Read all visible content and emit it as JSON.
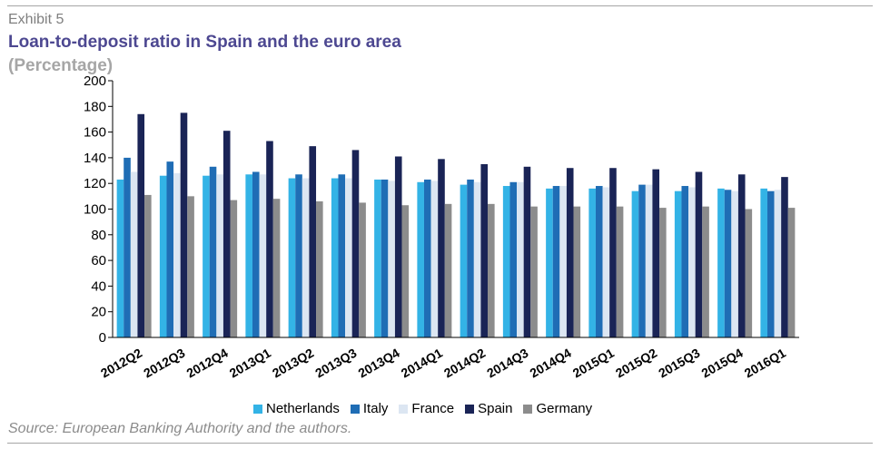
{
  "header": {
    "exhibit": "Exhibit 5",
    "title": "Loan-to-deposit ratio in Spain and the euro area",
    "subtitle": "(Percentage)"
  },
  "footer": {
    "source": "Source: European Banking Authority and the authors."
  },
  "chart_data": {
    "type": "bar",
    "title": "Loan-to-deposit ratio in Spain and the euro area",
    "subtitle": "(Percentage)",
    "xlabel": "",
    "ylabel": "",
    "ylim": [
      0,
      200
    ],
    "yticks": [
      0,
      20,
      40,
      60,
      80,
      100,
      120,
      140,
      160,
      180,
      200
    ],
    "grid": false,
    "legend_position": "bottom",
    "categories": [
      "2012Q2",
      "2012Q3",
      "2012Q4",
      "2013Q1",
      "2013Q2",
      "2013Q3",
      "2013Q4",
      "2014Q1",
      "2014Q2",
      "2014Q3",
      "2014Q4",
      "2015Q1",
      "2015Q2",
      "2015Q3",
      "2015Q4",
      "2016Q1"
    ],
    "series": [
      {
        "name": "Netherlands",
        "color": "#33b3e6",
        "values": [
          123,
          126,
          126,
          127,
          124,
          124,
          123,
          121,
          119,
          118,
          116,
          116,
          114,
          114,
          116,
          116
        ]
      },
      {
        "name": "Italy",
        "color": "#1f6db5",
        "values": [
          140,
          137,
          133,
          129,
          127,
          127,
          123,
          123,
          123,
          121,
          118,
          118,
          119,
          118,
          115,
          114
        ]
      },
      {
        "name": "France",
        "color": "#dce6f2",
        "values": [
          129,
          128,
          127,
          127,
          124,
          124,
          122,
          122,
          121,
          121,
          118,
          117,
          119,
          117,
          114,
          115
        ]
      },
      {
        "name": "Spain",
        "color": "#1a2456",
        "values": [
          174,
          175,
          161,
          153,
          149,
          146,
          141,
          139,
          135,
          133,
          132,
          132,
          131,
          129,
          127,
          125
        ]
      },
      {
        "name": "Germany",
        "color": "#8c8c8c",
        "values": [
          111,
          110,
          107,
          108,
          106,
          105,
          103,
          104,
          104,
          102,
          102,
          102,
          101,
          102,
          100,
          101
        ]
      }
    ]
  }
}
